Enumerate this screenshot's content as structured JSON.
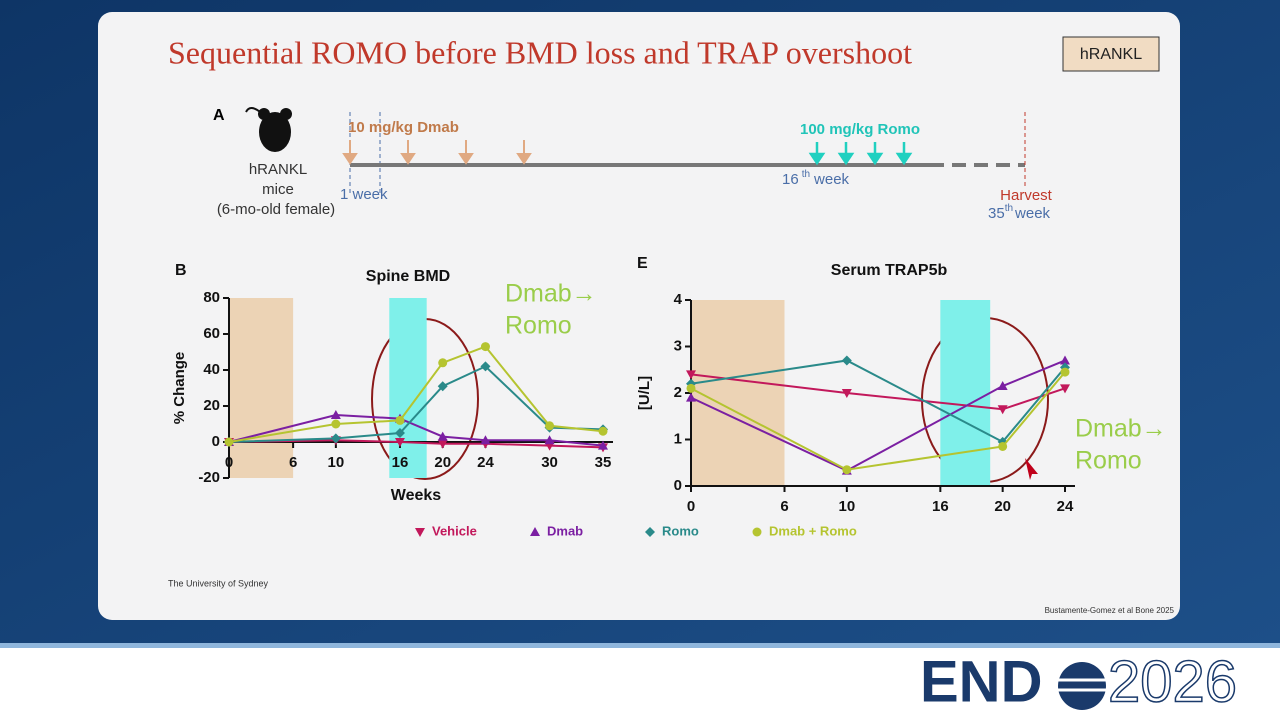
{
  "slide": {
    "title": "Sequential ROMO before BMD loss and TRAP overshoot",
    "badge": "hRANKL",
    "affiliation": "The University of Sydney",
    "citation": "Bustamente-Gomez et al Bone 2025"
  },
  "timeline": {
    "panel": "A",
    "model": [
      "hRANKL",
      "mice",
      "(6-mo-old female)"
    ],
    "dmab": "10 mg/kg Dmab",
    "romo": "100 mg/kg Romo",
    "week1": "1 week",
    "week16": "16",
    "week16_suffix": "th",
    "week16_word": "week",
    "harvest": "Harvest",
    "week35": "35",
    "week35_suffix": "th",
    "week35_word": "week"
  },
  "logo": {
    "left": "END",
    "right": "2026"
  },
  "chart_data": [
    {
      "type": "line",
      "panel": "B",
      "title": "Spine BMD",
      "xlabel": "Weeks",
      "ylabel": "% Change",
      "x": [
        0,
        10,
        16,
        20,
        24,
        30,
        35
      ],
      "xlim": [
        0,
        35
      ],
      "xticks": [
        0,
        6,
        10,
        16,
        20,
        24,
        30,
        35
      ],
      "ylim": [
        -20,
        80
      ],
      "yticks": [
        -20,
        0,
        20,
        40,
        60,
        80
      ],
      "shaded": [
        {
          "x": [
            0,
            6
          ],
          "color": "#ecd3b5"
        },
        {
          "x": [
            15,
            18.5
          ],
          "color": "#7ff0ea"
        }
      ],
      "annotation": [
        "Dmab→",
        "Romo"
      ],
      "series": [
        {
          "name": "Vehicle",
          "color": "#c2185b",
          "marker": "triangle-down",
          "values": [
            0,
            1,
            0,
            -1,
            -1,
            -2,
            -3
          ]
        },
        {
          "name": "Dmab",
          "color": "#7b1fa2",
          "marker": "triangle-up",
          "values": [
            0,
            15,
            13,
            3,
            1,
            1,
            -2
          ]
        },
        {
          "name": "Romo",
          "color": "#2a8a8a",
          "marker": "diamond",
          "values": [
            0,
            2,
            5,
            31,
            42,
            8,
            7
          ]
        },
        {
          "name": "Dmab + Romo",
          "color": "#b5c430",
          "marker": "circle",
          "values": [
            0,
            10,
            12,
            44,
            53,
            9,
            6
          ]
        }
      ]
    },
    {
      "type": "line",
      "panel": "E",
      "title": "Serum TRAP5b",
      "ylabel": "[U/L]",
      "x": [
        0,
        10,
        20,
        24
      ],
      "xlim": [
        0,
        24
      ],
      "xticks": [
        0,
        6,
        10,
        16,
        20,
        24
      ],
      "ylim": [
        0,
        4
      ],
      "yticks": [
        0,
        1,
        2,
        3,
        4
      ],
      "shaded": [
        {
          "x": [
            0,
            6
          ],
          "color": "#ecd3b5"
        },
        {
          "x": [
            16,
            19.2
          ],
          "color": "#7ff0ea"
        }
      ],
      "annotation": [
        "Dmab→",
        "Romo"
      ],
      "series": [
        {
          "color": "#c2185b",
          "marker": "triangle-down",
          "values": [
            2.4,
            2.0,
            1.65,
            2.1
          ]
        },
        {
          "color": "#7b1fa2",
          "marker": "triangle-up",
          "values": [
            1.9,
            0.33,
            2.15,
            2.7
          ]
        },
        {
          "color": "#2a8a8a",
          "marker": "diamond",
          "values": [
            2.2,
            2.7,
            0.95,
            2.55
          ]
        },
        {
          "color": "#b5c430",
          "marker": "circle",
          "values": [
            2.1,
            0.35,
            0.85,
            2.45
          ]
        }
      ]
    }
  ]
}
